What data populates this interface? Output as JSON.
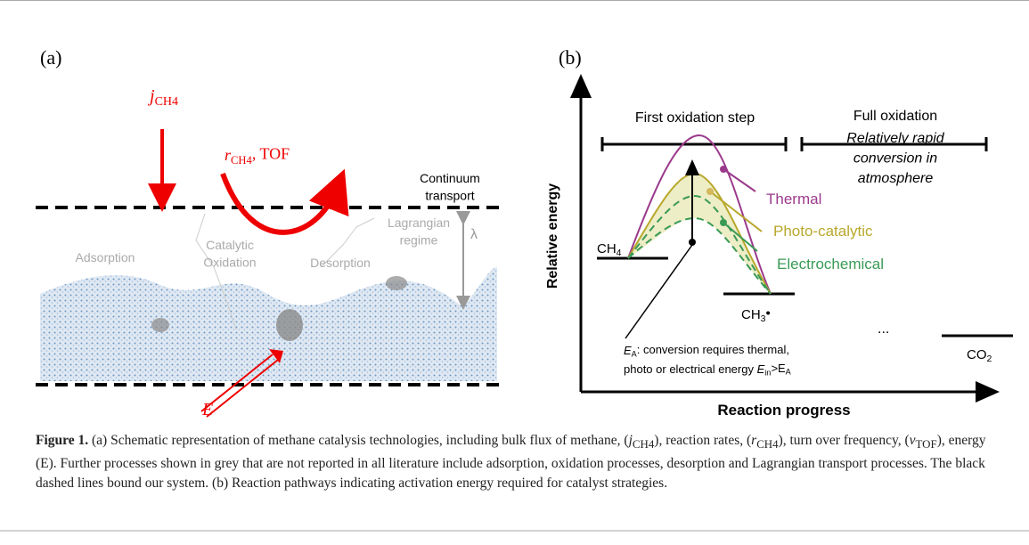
{
  "panel_a": {
    "label": "(a)",
    "flux": [
      {
        "text": "j"
      },
      {
        "sub": "CH4"
      }
    ],
    "rate": [
      {
        "text": "r"
      },
      {
        "sub": "CH4"
      },
      {
        "text": ", TOF"
      }
    ],
    "continuum": [
      "Continuum",
      "transport"
    ],
    "lagrangian": [
      "Lagrangian",
      "regime"
    ],
    "lambda": "λ",
    "adsorption": "Adsorption",
    "catalytic": [
      "Catalytic",
      "Oxidation"
    ],
    "desorption": "Desorption",
    "energy": "E"
  },
  "panel_b": {
    "label": "(b)",
    "first_step": "First oxidation step",
    "full_oxidation": "Full oxidation",
    "atmosphere": [
      "Relatively rapid",
      "conversion in",
      "atmosphere"
    ],
    "thermal": "Thermal",
    "photo": "Photo-catalytic",
    "electro": "Electrochemical",
    "ch4": [
      {
        "text": "CH"
      },
      {
        "sub": "4"
      }
    ],
    "ch3": [
      {
        "text": "CH"
      },
      {
        "sub": "3"
      },
      {
        "text": "•"
      }
    ],
    "ea_line1": [
      {
        "text": "E"
      },
      {
        "sub": "A"
      },
      {
        "text": ": conversion requires thermal,"
      }
    ],
    "ea_line2": [
      {
        "text": "photo or electrical energy "
      },
      {
        "text": "E"
      },
      {
        "sub": "in"
      },
      {
        "text": ">"
      },
      {
        "text": "E"
      },
      {
        "sub": "A"
      }
    ],
    "ellipsis": "...",
    "co2": [
      {
        "text": "CO"
      },
      {
        "sub": "2"
      }
    ],
    "y_label": "Relative energy",
    "x_label": "Reaction progress"
  },
  "caption": {
    "label": "Figure 1.",
    "segments": [
      {
        "text": " (a) Schematic representation of methane catalysis technologies, including bulk flux of methane, ("
      },
      {
        "text": "j"
      },
      {
        "sub": "CH4"
      },
      {
        "text": "), reaction rates, ("
      },
      {
        "text": "r"
      },
      {
        "sub": "CH4"
      },
      {
        "text": "), turn over frequency, ("
      },
      {
        "text": "ν"
      },
      {
        "sub": "TOF"
      },
      {
        "text": "), energy (E). Further processes shown in grey that are not reported in all literature include adsorption, oxidation processes, desorption and Lagrangian transport processes. The black dashed lines bound our system. (b) Reaction pathways indicating activation energy required for catalyst strategies."
      }
    ]
  }
}
